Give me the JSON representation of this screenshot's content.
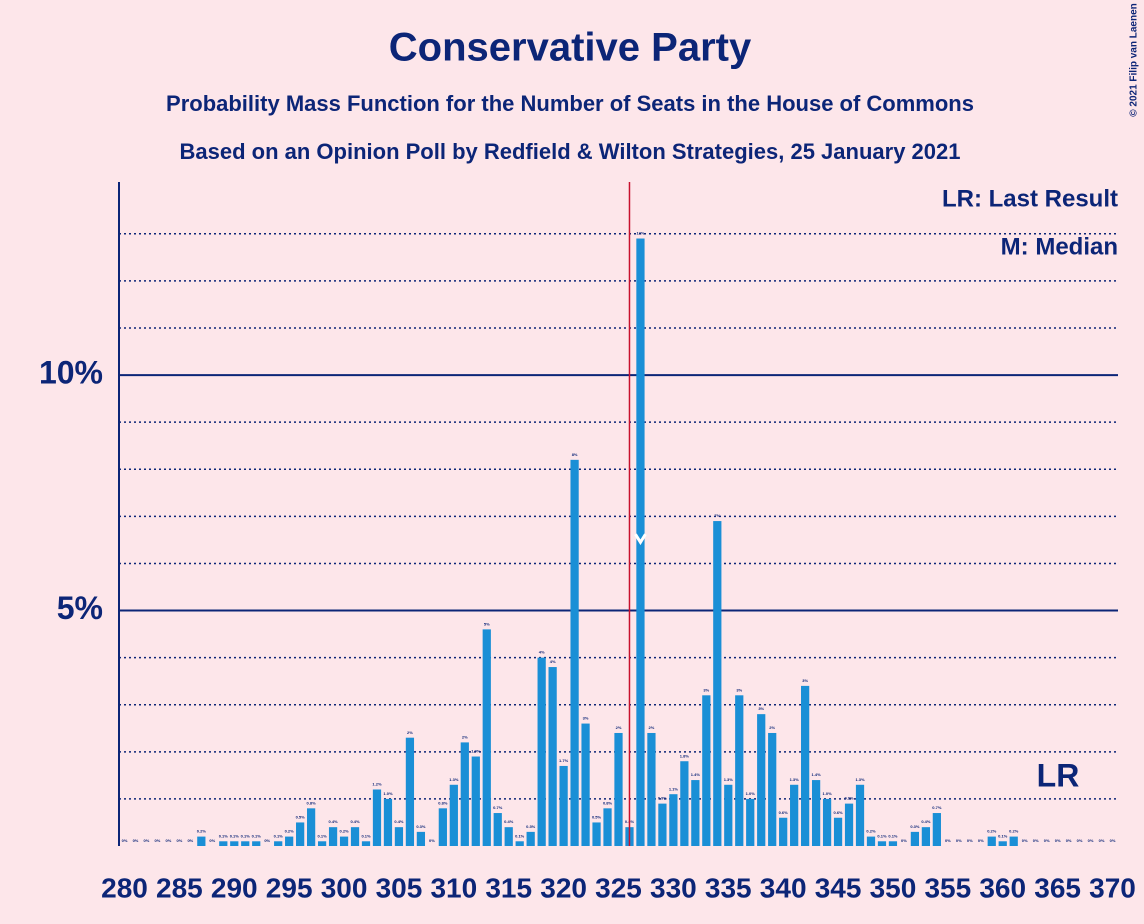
{
  "chart_data": {
    "type": "bar",
    "title": "Conservative Party",
    "subtitle": "Probability Mass Function for the Number of Seats in the House of Commons",
    "subtitle2": "Based on an Opinion Poll by Redfield & Wilton Strategies, 25 January 2021",
    "copyright": "© 2021 Filip van Laenen",
    "legend": [
      "LR: Last Result",
      "M: Median"
    ],
    "last_result": 326,
    "last_result_label": "LR",
    "median": 327,
    "color": "#1a8fd6",
    "last_result_color": "#c8102e",
    "x": [
      280,
      281,
      282,
      283,
      284,
      285,
      286,
      287,
      288,
      289,
      290,
      291,
      292,
      293,
      294,
      295,
      296,
      297,
      298,
      299,
      300,
      301,
      302,
      303,
      304,
      305,
      306,
      307,
      308,
      309,
      310,
      311,
      312,
      313,
      314,
      315,
      316,
      317,
      318,
      319,
      320,
      321,
      322,
      323,
      324,
      325,
      326,
      327,
      328,
      329,
      330,
      331,
      332,
      333,
      334,
      335,
      336,
      337,
      338,
      339,
      340,
      341,
      342,
      343,
      344,
      345,
      346,
      347,
      348,
      349,
      350,
      351,
      352,
      353,
      354,
      355,
      356,
      357,
      358,
      359,
      360,
      361,
      362,
      363,
      364,
      365,
      366,
      367,
      368,
      369,
      370
    ],
    "values": [
      0,
      0,
      0,
      0,
      0,
      0,
      0,
      0.2,
      0,
      0.1,
      0.1,
      0.1,
      0.1,
      0,
      0.1,
      0.2,
      0.5,
      0.8,
      0.1,
      0.4,
      0.2,
      0.4,
      0.1,
      1.2,
      1.0,
      0.4,
      2.3,
      0.3,
      0,
      0.8,
      1.3,
      2.2,
      1.9,
      4.6,
      0.7,
      0.4,
      0.1,
      0.3,
      4.0,
      3.8,
      1.7,
      8.2,
      2.6,
      0.5,
      0.8,
      2.4,
      0.4,
      12.9,
      2.4,
      0.9,
      1.1,
      1.8,
      1.4,
      3.2,
      6.9,
      1.3,
      3.2,
      1.0,
      2.8,
      2.4,
      0.6,
      1.3,
      3.4,
      1.4,
      1.0,
      0.6,
      0.9,
      1.3,
      0.2,
      0.1,
      0.1,
      0,
      0.3,
      0.4,
      0.7,
      0,
      0,
      0,
      0,
      0.2,
      0.1,
      0.2,
      0,
      0,
      0,
      0,
      0,
      0,
      0,
      0,
      0
    ],
    "value_labels": [
      "0%",
      "0%",
      "0%",
      "0%",
      "0%",
      "0%",
      "0%",
      "0.2%",
      "0%",
      "0.1%",
      "0.1%",
      "0.1%",
      "0.1%",
      "0%",
      "0.1%",
      "0.2%",
      "0.5%",
      "0.8%",
      "0.1%",
      "0.4%",
      "0.2%",
      "0.4%",
      "0.1%",
      "1.2%",
      "1.0%",
      "0.4%",
      "2%",
      "0.3%",
      "0%",
      "0.8%",
      "1.3%",
      "2%",
      "1.9%",
      "5%",
      "0.7%",
      "0.4%",
      "0.1%",
      "0.3%",
      "4%",
      "4%",
      "1.7%",
      "8%",
      "3%",
      "0.5%",
      "0.8%",
      "2%",
      "0.4%",
      "13%",
      "2%",
      "0.9%",
      "1.1%",
      "1.8%",
      "1.4%",
      "3%",
      "7%",
      "1.3%",
      "3%",
      "1.0%",
      "3%",
      "2%",
      "0.6%",
      "1.3%",
      "3%",
      "1.4%",
      "1.0%",
      "0.6%",
      "0.9%",
      "1.3%",
      "0.2%",
      "0.1%",
      "0.1%",
      "0%",
      "0.3%",
      "0.4%",
      "0.7%",
      "0%",
      "0%",
      "0%",
      "0%",
      "0.2%",
      "0.1%",
      "0.2%",
      "0%",
      "0%",
      "0%",
      "0%",
      "0%",
      "0%",
      "0%",
      "0%",
      "0%"
    ],
    "xlim": [
      279.5,
      370.5
    ],
    "xticks": [
      280,
      285,
      290,
      295,
      300,
      305,
      310,
      315,
      320,
      325,
      330,
      335,
      340,
      345,
      350,
      355,
      360,
      365,
      370
    ],
    "ylim": [
      0,
      14.1
    ],
    "yticks": [
      {
        "value": 5,
        "label": "5%"
      },
      {
        "value": 10,
        "label": "10%"
      }
    ],
    "minor_yticks": [
      1,
      2,
      3,
      4,
      6,
      7,
      8,
      9,
      11,
      12,
      13
    ],
    "grid": true
  }
}
